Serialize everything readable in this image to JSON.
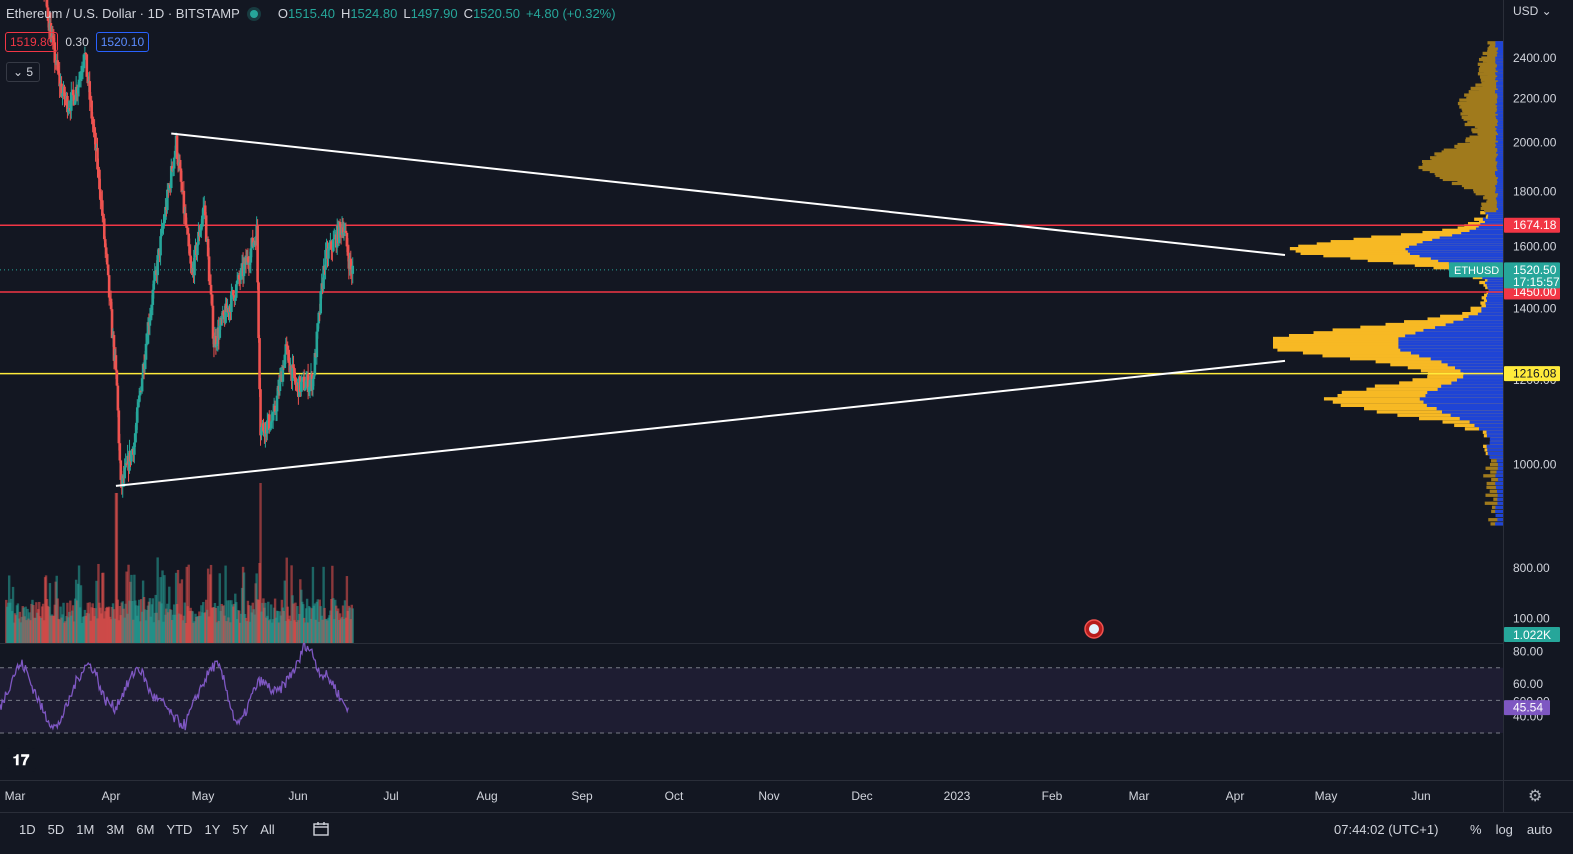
{
  "header": {
    "symbol": "Ethereum / U.S. Dollar · 1D · BITSTAMP",
    "open_label": "O",
    "open": "1515.40",
    "high_label": "H",
    "high": "1524.80",
    "low_label": "L",
    "low": "1497.90",
    "close_label": "C",
    "close": "1520.50",
    "change": "+4.80 (+0.32%)",
    "sell_price": "1519.80",
    "spread": "0.30",
    "buy_price": "1520.10",
    "indicators_count": "5"
  },
  "price_axis": {
    "currency": "USD",
    "ticks": [
      "2400.00",
      "2200.00",
      "2000.00",
      "1800.00",
      "1600.00",
      "1400.00",
      "1200.00",
      "1000.00",
      "800.00",
      "600.00"
    ]
  },
  "labels": {
    "level_upper": "1674.18",
    "level_lower": "1450.00",
    "level_yellow": "1216.08",
    "last_symbol": "ETHUSD",
    "last_price": "1520.50",
    "countdown": "17:15:57",
    "volume": "1.022K",
    "rsi_value": "45.54"
  },
  "rsi_axis": {
    "ticks": [
      "100.00",
      "80.00",
      "60.00",
      "40.00"
    ]
  },
  "time_axis": {
    "ticks": [
      "Mar",
      "Apr",
      "May",
      "Jun",
      "Jul",
      "Aug",
      "Sep",
      "Oct",
      "Nov",
      "Dec",
      "2023",
      "Feb",
      "Mar",
      "Apr",
      "May",
      "Jun"
    ]
  },
  "bottom_bar": {
    "ranges": [
      "1D",
      "5D",
      "1M",
      "3M",
      "6M",
      "YTD",
      "1Y",
      "5Y",
      "All"
    ],
    "clock": "07:44:02 (UTC+1)",
    "percent": "%",
    "log": "log",
    "auto": "auto"
  },
  "colors": {
    "background": "#131722",
    "up": "#26a69a",
    "down": "#ef5350",
    "resistance": "#f23645",
    "support_yellow": "#ffeb3b",
    "trendline": "#ffffff",
    "rsi": "#7e57c2",
    "volume_profile": "#f7b924",
    "value_area": "#1e44d6"
  },
  "chart_data": [
    {
      "type": "candlestick",
      "title": "Ethereum / U.S. Dollar · 1D · BITSTAMP",
      "timeframe": "1D",
      "x_ticks": [
        "Mar",
        "Apr",
        "May",
        "Jun",
        "Jul",
        "Aug",
        "Sep",
        "Oct",
        "Nov",
        "Dec",
        "2023",
        "Feb",
        "Mar",
        "Apr",
        "May",
        "Jun"
      ],
      "y_scale": "log",
      "ylim": [
        780,
        2500
      ],
      "key_points": [
        {
          "x": "2022-05-10",
          "y": 2500
        },
        {
          "x": "2022-05-28",
          "y": 1800
        },
        {
          "x": "2022-06-14",
          "y": 1180
        },
        {
          "x": "2022-06-18",
          "y": 950
        },
        {
          "x": "2022-07-02",
          "y": 1050
        },
        {
          "x": "2022-07-16",
          "y": 1350
        },
        {
          "x": "2022-08-01",
          "y": 1680
        },
        {
          "x": "2022-08-14",
          "y": 2000
        },
        {
          "x": "2022-08-30",
          "y": 1500
        },
        {
          "x": "2022-09-12",
          "y": 1750
        },
        {
          "x": "2022-09-22",
          "y": 1300
        },
        {
          "x": "2022-10-26",
          "y": 1550
        },
        {
          "x": "2022-11-05",
          "y": 1650
        },
        {
          "x": "2022-11-09",
          "y": 1080
        },
        {
          "x": "2022-11-22",
          "y": 1100
        },
        {
          "x": "2022-12-05",
          "y": 1280
        },
        {
          "x": "2022-12-16",
          "y": 1180
        },
        {
          "x": "2023-01-02",
          "y": 1200
        },
        {
          "x": "2023-01-14",
          "y": 1550
        },
        {
          "x": "2023-02-02",
          "y": 1680
        },
        {
          "x": "2023-02-10",
          "y": 1520
        }
      ],
      "horizontal_levels": [
        1674.18,
        1450.0,
        1216.08
      ],
      "last": 1520.5
    },
    {
      "type": "bar",
      "title": "Volume",
      "last_value": "1.022K"
    },
    {
      "type": "line",
      "title": "RSI",
      "ylim": [
        30,
        100
      ],
      "bands": [
        70,
        50,
        30
      ],
      "values": [
        45,
        52,
        58,
        65,
        70,
        72,
        68,
        60,
        55,
        48,
        42,
        38,
        35,
        33,
        40,
        45,
        52,
        60,
        65,
        70,
        72,
        70,
        65,
        55,
        50,
        48,
        45,
        50,
        55,
        60,
        65,
        70,
        68,
        62,
        55,
        52,
        50,
        48,
        45,
        40,
        38,
        36,
        35,
        42,
        48,
        55,
        60,
        65,
        70,
        72,
        68,
        60,
        50,
        40,
        35,
        38,
        45,
        52,
        58,
        62,
        60,
        58,
        55,
        55,
        58,
        62,
        66,
        70,
        75,
        85,
        82,
        78,
        70,
        66,
        65,
        62,
        58,
        52,
        48,
        45.54
      ],
      "last": 45.54
    }
  ]
}
